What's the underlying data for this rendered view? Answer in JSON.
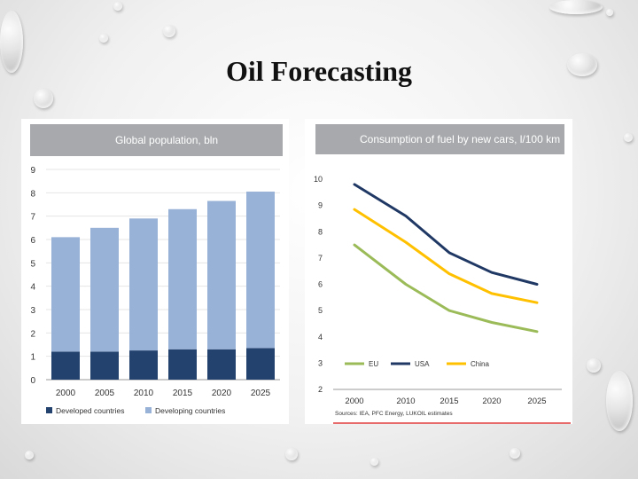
{
  "slide": {
    "title": "Oil Forecasting"
  },
  "chart_data": [
    {
      "type": "bar",
      "title": "Global population, bln",
      "categories": [
        "2000",
        "2005",
        "2010",
        "2015",
        "2020",
        "2025"
      ],
      "series": [
        {
          "name": "Developed countries",
          "color": "#23426e",
          "values": [
            1.2,
            1.2,
            1.25,
            1.3,
            1.3,
            1.35
          ]
        },
        {
          "name": "Developing countries",
          "color": "#98b1d6",
          "values": [
            4.9,
            5.3,
            5.65,
            6.0,
            6.35,
            6.7
          ]
        }
      ],
      "ylim": [
        0,
        9
      ],
      "yticks": [
        "0",
        "1",
        "2",
        "3",
        "4",
        "5",
        "6",
        "7",
        "8",
        "9"
      ],
      "legend": "bottom"
    },
    {
      "type": "line",
      "title": "Consumption of fuel by new cars, l/100 km",
      "x": [
        "2000",
        "2010",
        "2015",
        "2020",
        "2025"
      ],
      "series": [
        {
          "name": "EU",
          "color": "#9bbb59",
          "values": [
            7.5,
            6.0,
            5.0,
            4.55,
            4.2
          ]
        },
        {
          "name": "USA",
          "color": "#1f3864",
          "values": [
            9.8,
            8.6,
            7.2,
            6.45,
            6.0
          ]
        },
        {
          "name": "China",
          "color": "#ffc000",
          "values": [
            8.85,
            7.6,
            6.4,
            5.65,
            5.3
          ]
        }
      ],
      "ylim": [
        2,
        10
      ],
      "yticks": [
        "2",
        "3",
        "4",
        "5",
        "6",
        "7",
        "8",
        "9",
        "10"
      ],
      "legend": "bottom-left",
      "source": "Sources: IEA, PFC Energy, LUKOIL estimates"
    }
  ]
}
